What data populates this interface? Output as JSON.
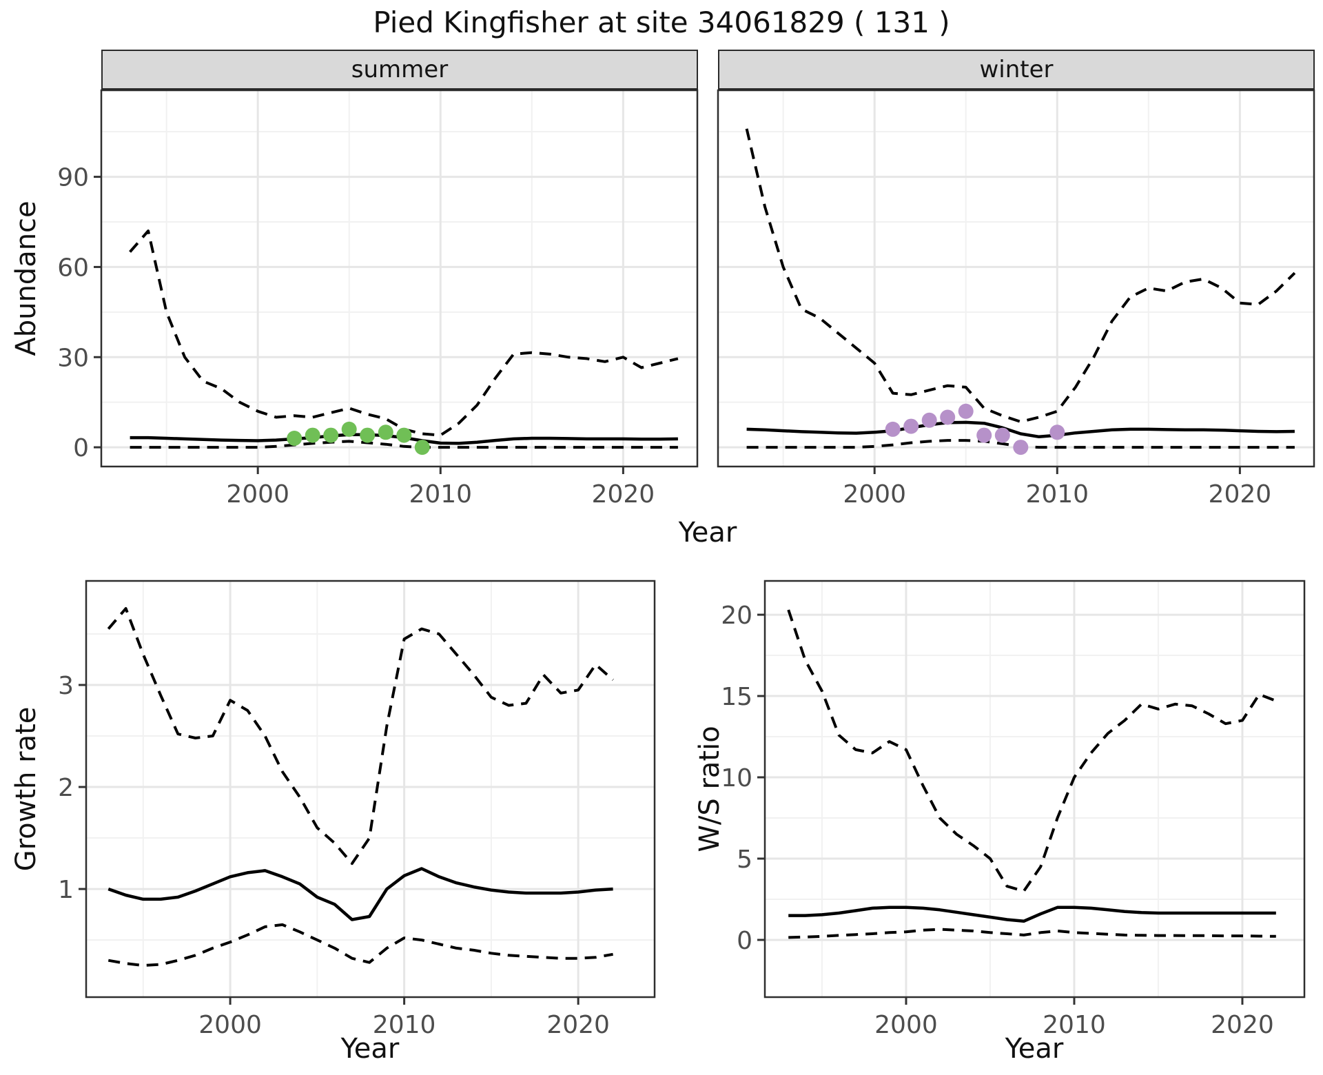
{
  "title": "Pied Kingfisher at site 34061829 ( 131 )",
  "colors": {
    "line": "#000000",
    "summer_points": "#70BF56",
    "winter_points": "#B691C9",
    "strip_fill": "#D9D9D9",
    "grid_major": "#E6E6E6",
    "grid_minor": "#F1F1F1",
    "panel_border": "#2E2E2E",
    "tick_label": "#4D4D4D"
  },
  "chart_data": [
    {
      "id": "abundance-summer",
      "type": "line",
      "facet_label": "summer",
      "xlabel": "Year",
      "ylabel": "Abundance",
      "legend": "none",
      "grid": "on",
      "xlim": [
        1991.43,
        2024.06
      ],
      "ylim": [
        -6.4,
        118.8
      ],
      "x_ticks": [
        2000,
        2010,
        2020
      ],
      "x_minor": [
        1995,
        2005,
        2015
      ],
      "y_ticks": [
        0,
        30,
        60,
        90
      ],
      "y_minor": [
        15,
        45,
        75,
        105
      ],
      "years": [
        1993,
        1994,
        1995,
        1996,
        1997,
        1998,
        1999,
        2000,
        2001,
        2002,
        2003,
        2004,
        2005,
        2006,
        2007,
        2008,
        2009,
        2010,
        2011,
        2012,
        2013,
        2014,
        2015,
        2016,
        2017,
        2018,
        2019,
        2020,
        2021,
        2022,
        2023
      ],
      "series": [
        {
          "name": "ci-upper",
          "style": "dashed",
          "values": [
            65,
            72,
            45,
            30,
            22,
            19.5,
            15,
            12,
            10,
            10.5,
            10,
            11.5,
            13,
            11,
            9.5,
            6,
            4.5,
            4,
            8,
            14,
            23,
            31,
            31.5,
            31,
            30,
            29.5,
            28.5,
            30,
            26.5,
            28,
            29.5
          ]
        },
        {
          "name": "median",
          "style": "solid",
          "values": [
            3.2,
            3.2,
            3,
            2.8,
            2.6,
            2.4,
            2.3,
            2.2,
            2.4,
            2.8,
            3.2,
            3.8,
            4.2,
            4.2,
            3.9,
            3.2,
            2.2,
            1.4,
            1.3,
            1.7,
            2.3,
            2.8,
            3,
            3,
            2.9,
            2.8,
            2.8,
            2.8,
            2.7,
            2.7,
            2.8
          ]
        },
        {
          "name": "ci-lower",
          "style": "dashed",
          "values": [
            0,
            0,
            0,
            0,
            0,
            0,
            0,
            0,
            0.3,
            0.8,
            1.3,
            1.7,
            2,
            1.5,
            1,
            0.3,
            0,
            0,
            0,
            0,
            0,
            0,
            0,
            0,
            0,
            0,
            0,
            0,
            0,
            0,
            0
          ]
        }
      ],
      "points": {
        "name": "observed-summer",
        "color": "#70BF56",
        "years": [
          2002,
          2003,
          2004,
          2005,
          2006,
          2007,
          2008,
          2009
        ],
        "values": [
          3,
          4,
          4,
          6,
          4,
          5,
          4,
          0
        ]
      }
    },
    {
      "id": "abundance-winter",
      "type": "line",
      "facet_label": "winter",
      "xlabel": "Year",
      "ylabel": "Abundance",
      "legend": "none",
      "grid": "on",
      "xlim": [
        1991.43,
        2024.06
      ],
      "ylim": [
        -6.4,
        118.8
      ],
      "x_ticks": [
        2000,
        2010,
        2020
      ],
      "x_minor": [
        1995,
        2005,
        2015
      ],
      "y_ticks": [
        0,
        30,
        60,
        90
      ],
      "y_minor": [
        15,
        45,
        75,
        105
      ],
      "years": [
        1993,
        1994,
        1995,
        1996,
        1997,
        1998,
        1999,
        2000,
        2001,
        2002,
        2003,
        2004,
        2005,
        2006,
        2007,
        2008,
        2009,
        2010,
        2011,
        2012,
        2013,
        2014,
        2015,
        2016,
        2017,
        2018,
        2019,
        2020,
        2021,
        2022,
        2023
      ],
      "series": [
        {
          "name": "ci-upper",
          "style": "dashed",
          "values": [
            106,
            80,
            60,
            46,
            43,
            38,
            33,
            28,
            18,
            17.5,
            19,
            20.5,
            20,
            13,
            10.5,
            8.5,
            10,
            12,
            20,
            30,
            42,
            50,
            53,
            52,
            55,
            56,
            53,
            48,
            47.5,
            52,
            58
          ]
        },
        {
          "name": "median",
          "style": "solid",
          "values": [
            6,
            5.8,
            5.5,
            5.2,
            5,
            4.8,
            4.7,
            5,
            5.5,
            6.5,
            7.5,
            8.2,
            8.3,
            8,
            6.5,
            4.5,
            3.5,
            4,
            4.8,
            5.3,
            5.8,
            6,
            6,
            5.9,
            5.8,
            5.8,
            5.7,
            5.5,
            5.3,
            5.2,
            5.3
          ]
        },
        {
          "name": "ci-lower",
          "style": "dashed",
          "values": [
            0,
            0,
            0,
            0,
            0,
            0,
            0,
            0.3,
            0.8,
            1.5,
            2,
            2.3,
            2.3,
            2,
            1.2,
            0.3,
            0,
            0,
            0,
            0,
            0,
            0,
            0,
            0,
            0,
            0,
            0,
            0,
            0,
            0,
            0
          ]
        }
      ],
      "points": {
        "name": "observed-winter",
        "color": "#B691C9",
        "years": [
          2001,
          2002,
          2003,
          2004,
          2005,
          2006,
          2007,
          2008,
          2010
        ],
        "values": [
          6,
          7,
          9,
          10,
          12,
          4,
          4,
          0,
          5
        ]
      }
    },
    {
      "id": "growth-rate",
      "type": "line",
      "facet_label": "",
      "xlabel": "Year",
      "ylabel": "Growth rate",
      "legend": "none",
      "grid": "on",
      "xlim": [
        1991.72,
        2024.39
      ],
      "ylim": [
        -0.06,
        4.02
      ],
      "x_ticks": [
        2000,
        2010,
        2020
      ],
      "x_minor": [
        1995,
        2005,
        2015
      ],
      "y_ticks": [
        1,
        2,
        3
      ],
      "y_minor": [
        0.5,
        1.5,
        2.5,
        3.5
      ],
      "years": [
        1993,
        1994,
        1995,
        1996,
        1997,
        1998,
        1999,
        2000,
        2001,
        2002,
        2003,
        2004,
        2005,
        2006,
        2007,
        2008,
        2009,
        2010,
        2011,
        2012,
        2013,
        2014,
        2015,
        2016,
        2017,
        2018,
        2019,
        2020,
        2021,
        2022
      ],
      "series": [
        {
          "name": "ci-upper",
          "style": "dashed",
          "values": [
            3.55,
            3.75,
            3.3,
            2.9,
            2.52,
            2.48,
            2.5,
            2.85,
            2.75,
            2.5,
            2.15,
            1.9,
            1.6,
            1.45,
            1.25,
            1.5,
            2.6,
            3.45,
            3.55,
            3.5,
            3.3,
            3.1,
            2.88,
            2.8,
            2.82,
            3.1,
            2.92,
            2.95,
            3.2,
            3.05
          ]
        },
        {
          "name": "median",
          "style": "solid",
          "values": [
            1,
            0.94,
            0.9,
            0.9,
            0.92,
            0.98,
            1.05,
            1.12,
            1.16,
            1.18,
            1.12,
            1.05,
            0.92,
            0.85,
            0.7,
            0.73,
            1,
            1.13,
            1.2,
            1.12,
            1.06,
            1.02,
            0.99,
            0.97,
            0.96,
            0.96,
            0.96,
            0.97,
            0.99,
            1
          ]
        },
        {
          "name": "ci-lower",
          "style": "dashed",
          "values": [
            0.3,
            0.27,
            0.25,
            0.26,
            0.3,
            0.35,
            0.42,
            0.48,
            0.55,
            0.63,
            0.65,
            0.58,
            0.5,
            0.42,
            0.32,
            0.28,
            0.42,
            0.52,
            0.5,
            0.46,
            0.42,
            0.4,
            0.37,
            0.35,
            0.34,
            0.33,
            0.32,
            0.32,
            0.33,
            0.36
          ]
        }
      ],
      "points": null
    },
    {
      "id": "ws-ratio",
      "type": "line",
      "facet_label": "",
      "xlabel": "Year",
      "ylabel": "W/S ratio",
      "legend": "none",
      "grid": "on",
      "xlim": [
        1991.6,
        2023.69
      ],
      "ylim": [
        -3.52,
        22.08
      ],
      "x_ticks": [
        2000,
        2010,
        2020
      ],
      "x_minor": [
        1995,
        2005,
        2015
      ],
      "y_ticks": [
        0,
        5,
        10,
        15,
        20
      ],
      "y_minor": [
        2.5,
        7.5,
        12.5,
        17.5
      ],
      "years": [
        1993,
        1994,
        1995,
        1996,
        1997,
        1998,
        1999,
        2000,
        2001,
        2002,
        2003,
        2004,
        2005,
        2006,
        2007,
        2008,
        2009,
        2010,
        2011,
        2012,
        2013,
        2014,
        2015,
        2016,
        2017,
        2018,
        2019,
        2020,
        2021,
        2022
      ],
      "series": [
        {
          "name": "ci-upper",
          "style": "dashed",
          "values": [
            20.3,
            17.2,
            15.3,
            12.6,
            11.7,
            11.5,
            12.2,
            11.7,
            9.5,
            7.5,
            6.5,
            5.8,
            5,
            3.3,
            3,
            4.5,
            7.5,
            10,
            11.5,
            12.7,
            13.5,
            14.5,
            14.2,
            14.5,
            14.4,
            13.9,
            13.3,
            13.5,
            15.1,
            14.7
          ]
        },
        {
          "name": "median",
          "style": "solid",
          "values": [
            1.5,
            1.5,
            1.55,
            1.65,
            1.8,
            1.95,
            2,
            2,
            1.95,
            1.85,
            1.7,
            1.55,
            1.4,
            1.25,
            1.15,
            1.6,
            2,
            2,
            1.95,
            1.85,
            1.75,
            1.68,
            1.65,
            1.65,
            1.65,
            1.65,
            1.65,
            1.65,
            1.65,
            1.65
          ]
        },
        {
          "name": "ci-lower",
          "style": "dashed",
          "values": [
            0.15,
            0.18,
            0.22,
            0.28,
            0.33,
            0.38,
            0.45,
            0.5,
            0.6,
            0.65,
            0.6,
            0.55,
            0.45,
            0.38,
            0.3,
            0.45,
            0.55,
            0.45,
            0.4,
            0.35,
            0.3,
            0.28,
            0.27,
            0.27,
            0.26,
            0.26,
            0.25,
            0.25,
            0.23,
            0.22
          ]
        }
      ],
      "points": null
    }
  ]
}
